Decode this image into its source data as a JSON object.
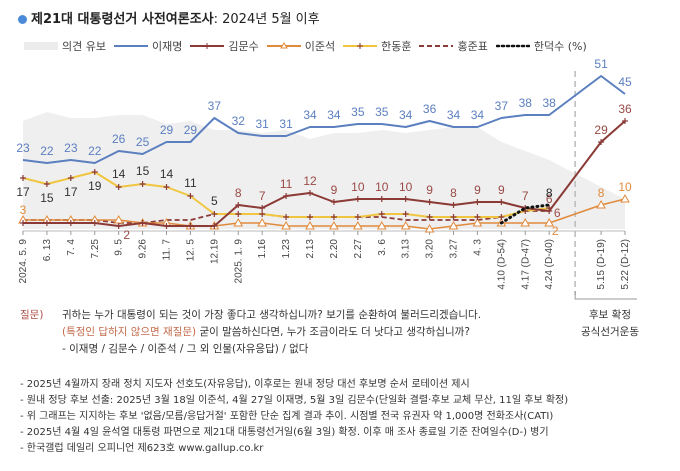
{
  "title": {
    "bold": "제21대 대통령선거 사전여론조사",
    "rest": ": 2024년 5월 이후"
  },
  "legend": [
    {
      "key": "undecided",
      "label": "의견 유보"
    },
    {
      "key": "lee_jm",
      "label": "이재명"
    },
    {
      "key": "kim_ms",
      "label": "김문수"
    },
    {
      "key": "lee_js",
      "label": "이준석"
    },
    {
      "key": "han_dh",
      "label": "한동훈"
    },
    {
      "key": "hong_jp",
      "label": "홍준표"
    },
    {
      "key": "han_ds",
      "label": "한덕수 (%)"
    }
  ],
  "colors": {
    "lee_jm": "#5b7fbf",
    "kim_ms": "#8b3a36",
    "lee_js": "#e08a3c",
    "han_dh": "#f0c640",
    "hong_jp": "#8b3a36",
    "han_ds": "#111111",
    "undecided": "#efefef",
    "title_dot": "#4a8ad8"
  },
  "chart_data": {
    "type": "line",
    "title": "제21대 대통령선거 사전여론조사: 2024년 5월 이후",
    "xlabel": "",
    "ylabel": "%",
    "ylim": [
      0,
      55
    ],
    "grid": false,
    "legend_position": "top",
    "x": [
      "2024. 5. 9",
      "6. 13",
      "7. 4",
      "7.25",
      "9. 5",
      "9.26",
      "11. 7",
      "12. 5",
      "12.19",
      "2025. 1. 9",
      "1.16",
      "1.23",
      "2.13",
      "2.20",
      "2.27",
      "3. 6",
      "3.13",
      "3.20",
      "3.27",
      "4. 3",
      "4.10 (D-54)",
      "4.17 (D-47)",
      "4.24 (D-40)",
      "5.15 (D-19)",
      "5.22 (D-12)"
    ],
    "series": [
      {
        "key": "undecided",
        "name": "의견 유보",
        "style": "area",
        "values": [
          36,
          39,
          37,
          37,
          38,
          38,
          35,
          36,
          33,
          33,
          32,
          33,
          30,
          32,
          32,
          33,
          32,
          33,
          34,
          34,
          29,
          26,
          23,
          14,
          10
        ]
      },
      {
        "key": "lee_jm",
        "name": "이재명",
        "style": "solid",
        "values": [
          23,
          22,
          23,
          22,
          26,
          25,
          29,
          29,
          37,
          32,
          31,
          31,
          34,
          34,
          35,
          35,
          34,
          36,
          34,
          34,
          37,
          38,
          38,
          51,
          45
        ],
        "labels": [
          true,
          true,
          true,
          true,
          true,
          true,
          true,
          true,
          true,
          true,
          true,
          true,
          true,
          true,
          true,
          true,
          true,
          true,
          true,
          true,
          true,
          true,
          true,
          true,
          true
        ]
      },
      {
        "key": "kim_ms",
        "name": "김문수",
        "style": "solid-cross",
        "values": [
          2,
          2,
          2,
          2,
          1,
          2,
          1,
          1,
          1,
          8,
          7,
          11,
          12,
          9,
          10,
          10,
          10,
          9,
          8,
          9,
          9,
          7,
          6,
          29,
          36
        ],
        "labels": [
          false,
          false,
          false,
          false,
          false,
          false,
          false,
          false,
          false,
          true,
          true,
          true,
          true,
          true,
          true,
          true,
          true,
          true,
          true,
          true,
          true,
          true,
          true,
          true,
          true
        ]
      },
      {
        "key": "lee_js",
        "name": "이준석",
        "style": "solid-triangle",
        "values": [
          3,
          3,
          3,
          3,
          3,
          2,
          2,
          1,
          1,
          2,
          2,
          1,
          1,
          1,
          1,
          1,
          1,
          0,
          1,
          2,
          2,
          2,
          2,
          8,
          10
        ],
        "labels": [
          true,
          false,
          false,
          false,
          false,
          false,
          false,
          false,
          false,
          false,
          false,
          false,
          false,
          false,
          false,
          false,
          false,
          false,
          false,
          false,
          false,
          false,
          true,
          true,
          true
        ],
        "label_overrides": {
          "0": "3",
          "22": "2"
        }
      },
      {
        "key": "han_dh",
        "name": "한동훈",
        "style": "solid-cross",
        "values": [
          17,
          15,
          17,
          19,
          14,
          15,
          14,
          11,
          5,
          5,
          5,
          4,
          4,
          4,
          4,
          5,
          5,
          4,
          4,
          4,
          4,
          6,
          7
        ],
        "labels": [
          true,
          true,
          true,
          true,
          true,
          true,
          true,
          true,
          true,
          false,
          false,
          false,
          false,
          false,
          false,
          false,
          false,
          false,
          false,
          false,
          false,
          false,
          false
        ]
      },
      {
        "key": "hong_jp",
        "name": "홍준표",
        "style": "dashed",
        "values": [
          3,
          3,
          3,
          3,
          2,
          2,
          3,
          3,
          5,
          5,
          5,
          4,
          4,
          4,
          4,
          4,
          3,
          3,
          3,
          3,
          4,
          6,
          6
        ],
        "labels": [
          false,
          false,
          false,
          false,
          true,
          false,
          false,
          false,
          false,
          false,
          false,
          false,
          false,
          false,
          false,
          false,
          false,
          false,
          false,
          false,
          false,
          false,
          false
        ],
        "label_overrides": {
          "4": "2"
        }
      },
      {
        "key": "han_ds",
        "name": "한덕수",
        "style": "dotted",
        "start_index": 20,
        "values": [
          2,
          7,
          8
        ],
        "labels": [
          false,
          false,
          true
        ]
      }
    ],
    "annotations": [
      {
        "type": "vline",
        "between": [
          "4.24 (D-40)",
          "5.15 (D-19)"
        ],
        "text_lines": [
          "후보 확정",
          "공식선거운동"
        ]
      },
      {
        "type": "label",
        "series": "kim_ms",
        "index": 22,
        "text": "6"
      }
    ]
  },
  "question": {
    "label": "질문)",
    "line1": "귀하는 누가 대통령이 되는 것이 가장 좋다고 생각하십니까? 보기를 순환하여 불러드리겠습니다.",
    "line2_red": "(특정인 답하지 않으면 재질문)",
    "line2_rest": " 굳이 말씀하신다면, 누가 조금이라도 더 낫다고 생각하십니까?",
    "line3": "- 이재명 / 김문수 / 이준석 / 그 외 인물(자유응답) / 없다"
  },
  "side_note": {
    "line1": "후보 확정",
    "line2": "공식선거운동"
  },
  "notes": [
    "- 2025년 4월까지 장래 정치 지도자 선호도(자유응답), 이후로는 원내 정당 대선 후보명 순서 로테이션 제시",
    "- 원내 정당 후보 선출: 2025년 3월 18일 이준석, 4월 27일 이재명, 5월 3일 김문수(단일화 결렬·후보 교체 무산, 11일 후보 확정)",
    "- 위 그래프는 지지하는 후보 '없음/모름/응답거절' 포함한 단순 집계 결과 추이. 시점별 전국 유권자 약 1,000명 전화조사(CATI)",
    "- 2025년 4월 4일 윤석열 대통령 파면으로 제21대 대통령선거일(6월 3일) 확정. 이후 매 조사 종료일 기준 잔여일수(D-) 병기",
    "- 한국갤럽 데일리 오피니언 제623호 www.gallup.co.kr"
  ]
}
